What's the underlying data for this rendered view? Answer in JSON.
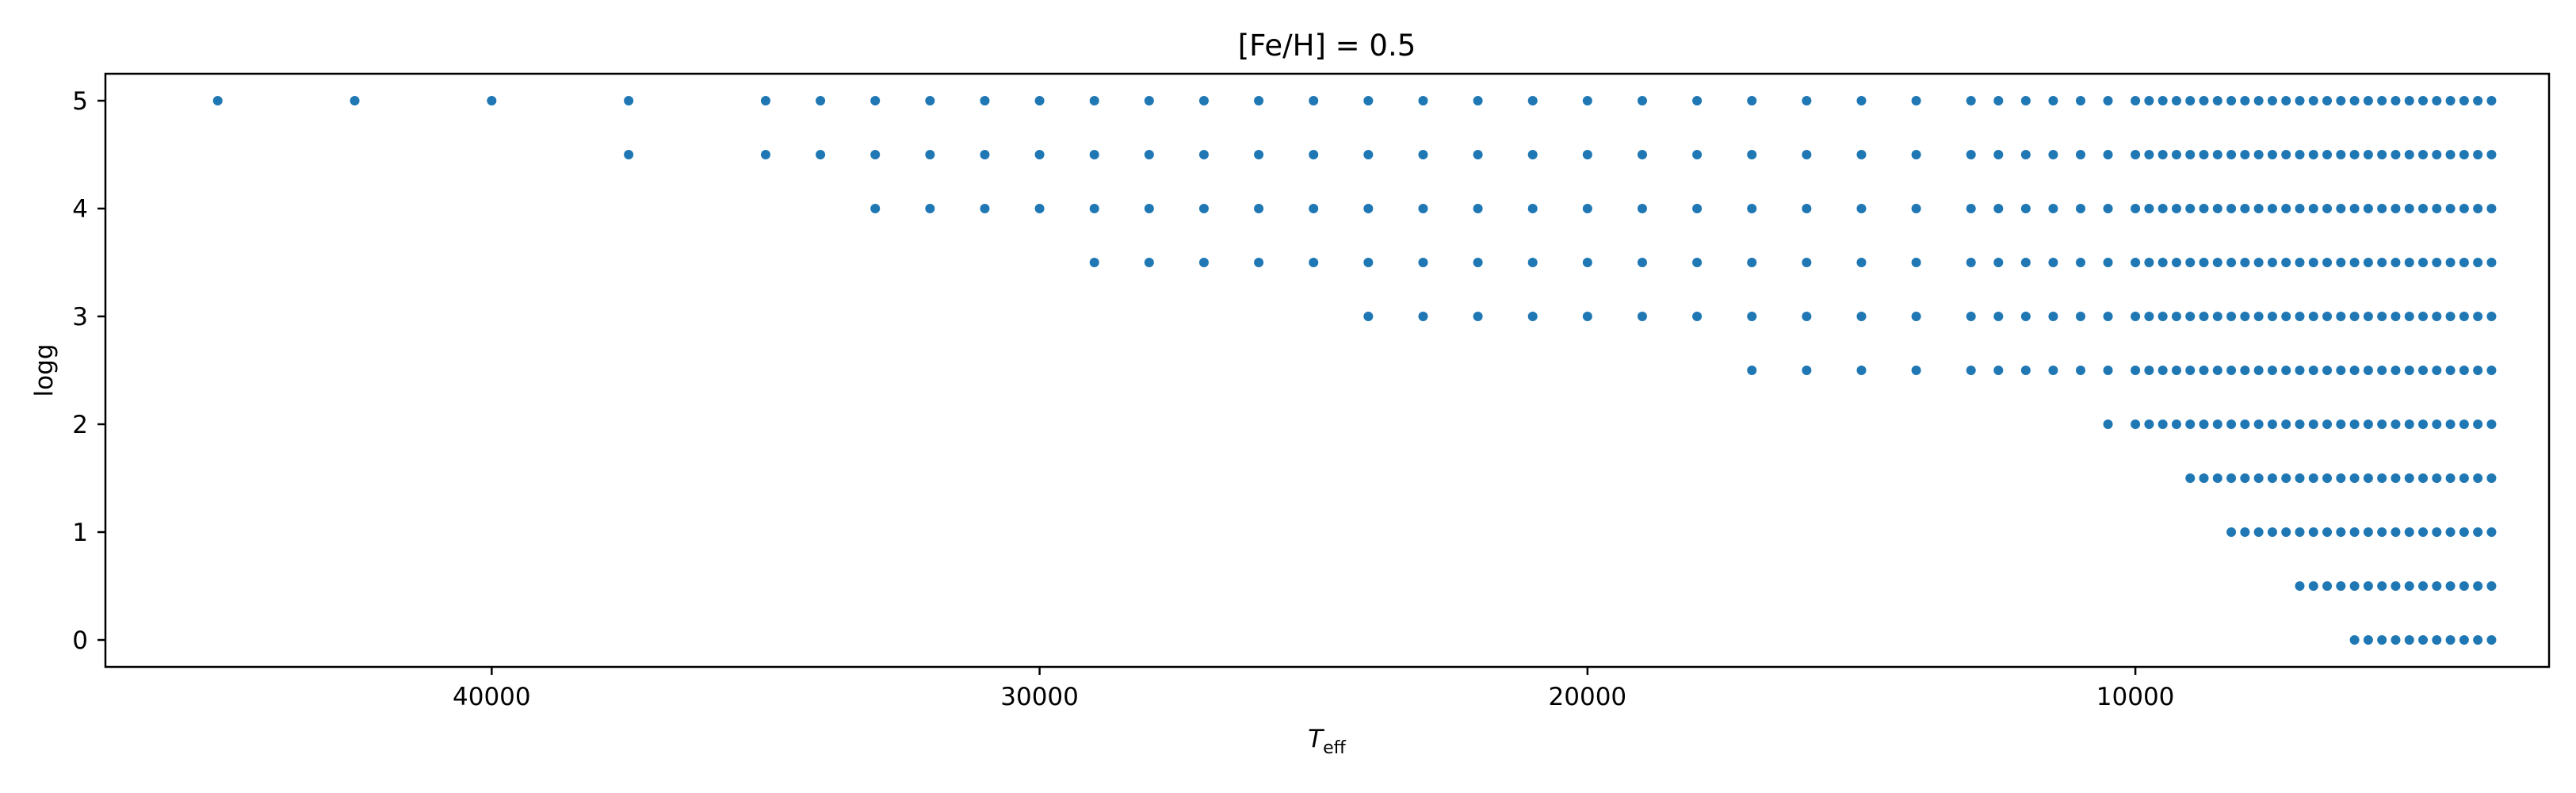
{
  "chart_data": {
    "type": "scatter",
    "title": "[Fe/H] = 0.5",
    "xlabel": "T",
    "xlabel_sub": "eff",
    "ylabel": "logg",
    "xlim": [
      47050,
      2450
    ],
    "ylim": [
      5.25,
      -0.25
    ],
    "x_inverted": true,
    "y_inverted": true,
    "grid": false,
    "marker_color": "#1f77b4",
    "xticks": [
      40000,
      30000,
      20000,
      10000
    ],
    "xtick_labels": [
      "40000",
      "30000",
      "20000",
      "10000"
    ],
    "yticks": [
      0,
      1,
      2,
      3,
      4,
      5
    ],
    "ytick_labels": [
      "0",
      "1",
      "2",
      "3",
      "4",
      "5"
    ],
    "grid_rows": [
      {
        "logg": 0.0,
        "teff": [
          6000,
          5750,
          5500,
          5250,
          5000,
          4750,
          4500,
          4250,
          4000,
          3750,
          3500
        ]
      },
      {
        "logg": 0.5,
        "teff": [
          7000,
          6750,
          6500,
          6250,
          6000,
          5750,
          5500,
          5250,
          5000,
          4750,
          4500,
          4250,
          4000,
          3750,
          3500
        ]
      },
      {
        "logg": 1.0,
        "teff": [
          8250,
          8000,
          7750,
          7500,
          7250,
          7000,
          6750,
          6500,
          6250,
          6000,
          5750,
          5500,
          5250,
          5000,
          4750,
          4500,
          4250,
          4000,
          3750,
          3500
        ]
      },
      {
        "logg": 1.5,
        "teff": [
          9000,
          8750,
          8500,
          8250,
          8000,
          7750,
          7500,
          7250,
          7000,
          6750,
          6500,
          6250,
          6000,
          5750,
          5500,
          5250,
          5000,
          4750,
          4500,
          4250,
          4000,
          3750,
          3500
        ]
      },
      {
        "logg": 2.0,
        "teff": [
          10500,
          10000,
          9750,
          9500,
          9250,
          9000,
          8750,
          8500,
          8250,
          8000,
          7750,
          7500,
          7250,
          7000,
          6750,
          6500,
          6250,
          6000,
          5750,
          5500,
          5250,
          5000,
          4750,
          4500,
          4250,
          4000,
          3750,
          3500
        ]
      },
      {
        "logg": 2.5,
        "teff": [
          17000,
          16000,
          15000,
          14000,
          13000,
          12500,
          12000,
          11500,
          11000,
          10500,
          10000,
          9750,
          9500,
          9250,
          9000,
          8750,
          8500,
          8250,
          8000,
          7750,
          7500,
          7250,
          7000,
          6750,
          6500,
          6250,
          6000,
          5750,
          5500,
          5250,
          5000,
          4750,
          4500,
          4250,
          4000,
          3750,
          3500
        ]
      },
      {
        "logg": 3.0,
        "teff": [
          24000,
          23000,
          22000,
          21000,
          20000,
          19000,
          18000,
          17000,
          16000,
          15000,
          14000,
          13000,
          12500,
          12000,
          11500,
          11000,
          10500,
          10000,
          9750,
          9500,
          9250,
          9000,
          8750,
          8500,
          8250,
          8000,
          7750,
          7500,
          7250,
          7000,
          6750,
          6500,
          6250,
          6000,
          5750,
          5500,
          5250,
          5000,
          4750,
          4500,
          4250,
          4000,
          3750,
          3500
        ]
      },
      {
        "logg": 3.5,
        "teff": [
          29000,
          28000,
          27000,
          26000,
          25000,
          24000,
          23000,
          22000,
          21000,
          20000,
          19000,
          18000,
          17000,
          16000,
          15000,
          14000,
          13000,
          12500,
          12000,
          11500,
          11000,
          10500,
          10000,
          9750,
          9500,
          9250,
          9000,
          8750,
          8500,
          8250,
          8000,
          7750,
          7500,
          7250,
          7000,
          6750,
          6500,
          6250,
          6000,
          5750,
          5500,
          5250,
          5000,
          4750,
          4500,
          4250,
          4000,
          3750,
          3500
        ]
      },
      {
        "logg": 4.0,
        "teff": [
          33000,
          32000,
          31000,
          30000,
          29000,
          28000,
          27000,
          26000,
          25000,
          24000,
          23000,
          22000,
          21000,
          20000,
          19000,
          18000,
          17000,
          16000,
          15000,
          14000,
          13000,
          12500,
          12000,
          11500,
          11000,
          10500,
          10000,
          9750,
          9500,
          9250,
          9000,
          8750,
          8500,
          8250,
          8000,
          7750,
          7500,
          7250,
          7000,
          6750,
          6500,
          6250,
          6000,
          5750,
          5500,
          5250,
          5000,
          4750,
          4500,
          4250,
          4000,
          3750,
          3500
        ]
      },
      {
        "logg": 4.5,
        "teff": [
          37500,
          35000,
          34000,
          33000,
          32000,
          31000,
          30000,
          29000,
          28000,
          27000,
          26000,
          25000,
          24000,
          23000,
          22000,
          21000,
          20000,
          19000,
          18000,
          17000,
          16000,
          15000,
          14000,
          13000,
          12500,
          12000,
          11500,
          11000,
          10500,
          10000,
          9750,
          9500,
          9250,
          9000,
          8750,
          8500,
          8250,
          8000,
          7750,
          7500,
          7250,
          7000,
          6750,
          6500,
          6250,
          6000,
          5750,
          5500,
          5250,
          5000,
          4750,
          4500,
          4250,
          4000,
          3750,
          3500
        ]
      },
      {
        "logg": 5.0,
        "teff": [
          45000,
          42500,
          40000,
          37500,
          35000,
          34000,
          33000,
          32000,
          31000,
          30000,
          29000,
          28000,
          27000,
          26000,
          25000,
          24000,
          23000,
          22000,
          21000,
          20000,
          19000,
          18000,
          17000,
          16000,
          15000,
          14000,
          13000,
          12500,
          12000,
          11500,
          11000,
          10500,
          10000,
          9750,
          9500,
          9250,
          9000,
          8750,
          8500,
          8250,
          8000,
          7750,
          7500,
          7250,
          7000,
          6750,
          6500,
          6250,
          6000,
          5750,
          5500,
          5250,
          5000,
          4750,
          4500,
          4250,
          4000,
          3750,
          3500
        ]
      }
    ]
  }
}
